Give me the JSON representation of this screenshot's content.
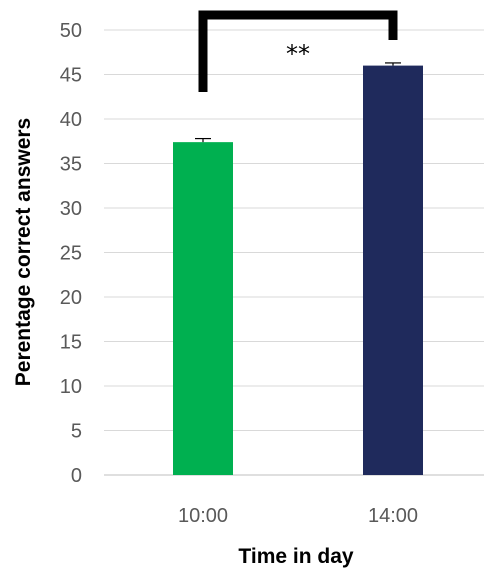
{
  "chart_data": {
    "type": "bar",
    "categories": [
      "10:00",
      "14:00"
    ],
    "values": [
      37.4,
      46.0
    ],
    "errors": [
      0.4,
      0.3
    ],
    "colors": [
      "#00b050",
      "#1f2a5c"
    ],
    "xlabel": "Time in day",
    "ylabel": "Perentage correct answers",
    "ylim": [
      0,
      50
    ],
    "yticks": [
      0,
      5,
      10,
      15,
      20,
      25,
      30,
      35,
      40,
      45,
      50
    ],
    "grid": true,
    "significance": {
      "label": "**",
      "between": [
        "10:00",
        "14:00"
      ]
    }
  }
}
